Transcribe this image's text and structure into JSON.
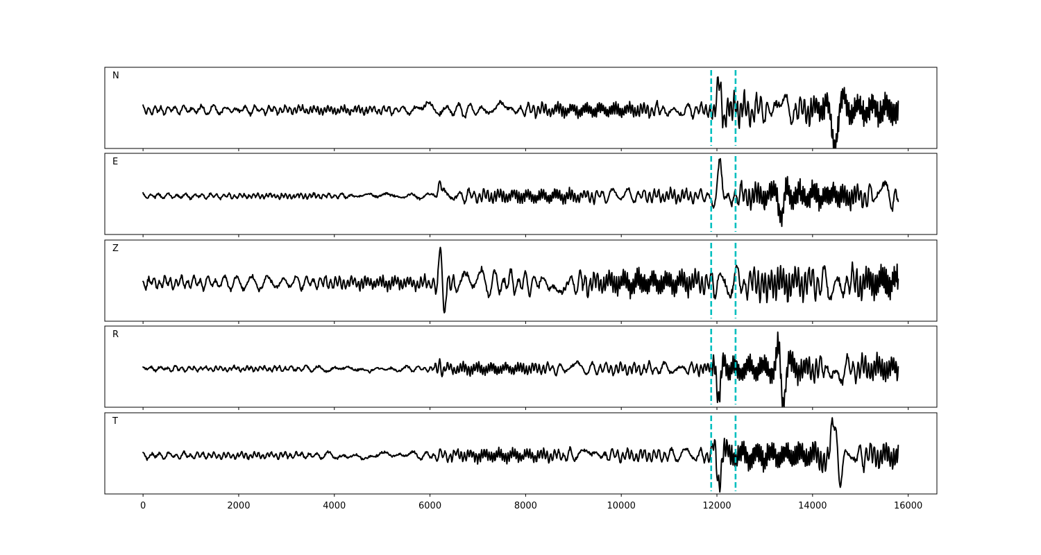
{
  "chart_data": {
    "type": "line",
    "x_ticks": [
      0,
      2000,
      4000,
      6000,
      8000,
      10000,
      12000,
      14000,
      16000
    ],
    "xlim": [
      -800,
      16600
    ],
    "ylim": [
      -1,
      1
    ],
    "n_samples": 15800,
    "marker_color": "#00bfbf",
    "trace_color": "#000000",
    "markers": [
      11880,
      12390
    ],
    "panels": [
      {
        "label": "N",
        "seed": 11,
        "noise": 0.06,
        "segments": [
          {
            "start": 0,
            "end": 5800,
            "amp": 0.1
          },
          {
            "start": 5800,
            "end": 11900,
            "amp": 0.16
          },
          {
            "start": 11900,
            "end": 15800,
            "amp": 0.35
          }
        ],
        "events": [
          {
            "x": 12050,
            "amp": 0.85,
            "width": 110
          },
          {
            "x": 14450,
            "amp": -0.9,
            "width": 170
          },
          {
            "x": 12380,
            "amp": 0.3,
            "width": 90
          }
        ]
      },
      {
        "label": "E",
        "seed": 23,
        "noise": 0.05,
        "segments": [
          {
            "start": 0,
            "end": 6100,
            "amp": 0.06
          },
          {
            "start": 6100,
            "end": 11900,
            "amp": 0.16
          },
          {
            "start": 11900,
            "end": 15800,
            "amp": 0.3
          }
        ],
        "events": [
          {
            "x": 6200,
            "amp": 0.25,
            "width": 60
          },
          {
            "x": 12060,
            "amp": 0.9,
            "width": 110
          },
          {
            "x": 13350,
            "amp": -0.55,
            "width": 120
          },
          {
            "x": 14450,
            "amp": 0.3,
            "width": 100
          }
        ]
      },
      {
        "label": "Z",
        "seed": 37,
        "noise": 0.07,
        "segments": [
          {
            "start": 0,
            "end": 6100,
            "amp": 0.15
          },
          {
            "start": 6100,
            "end": 11900,
            "amp": 0.28
          },
          {
            "start": 11900,
            "end": 15800,
            "amp": 0.4
          }
        ],
        "events": [
          {
            "x": 6220,
            "amp": 0.95,
            "width": 70
          },
          {
            "x": 6300,
            "amp": -0.6,
            "width": 70
          },
          {
            "x": 6440,
            "amp": -0.55,
            "width": 60
          },
          {
            "x": 13050,
            "amp": -0.4,
            "width": 90
          }
        ]
      },
      {
        "label": "R",
        "seed": 51,
        "noise": 0.05,
        "segments": [
          {
            "start": 0,
            "end": 6100,
            "amp": 0.06
          },
          {
            "start": 6100,
            "end": 11900,
            "amp": 0.14
          },
          {
            "start": 11900,
            "end": 15800,
            "amp": 0.3
          }
        ],
        "events": [
          {
            "x": 6200,
            "amp": 0.2,
            "width": 60
          },
          {
            "x": 12040,
            "amp": -0.9,
            "width": 110
          },
          {
            "x": 13380,
            "amp": -0.75,
            "width": 130
          },
          {
            "x": 13300,
            "amp": 0.5,
            "width": 90
          }
        ]
      },
      {
        "label": "T",
        "seed": 67,
        "noise": 0.05,
        "segments": [
          {
            "start": 0,
            "end": 6100,
            "amp": 0.08
          },
          {
            "start": 6100,
            "end": 11900,
            "amp": 0.15
          },
          {
            "start": 11900,
            "end": 15800,
            "amp": 0.32
          }
        ],
        "events": [
          {
            "x": 12040,
            "amp": -0.75,
            "width": 110
          },
          {
            "x": 14450,
            "amp": 0.9,
            "width": 160
          },
          {
            "x": 14560,
            "amp": -0.6,
            "width": 110
          }
        ]
      }
    ]
  }
}
